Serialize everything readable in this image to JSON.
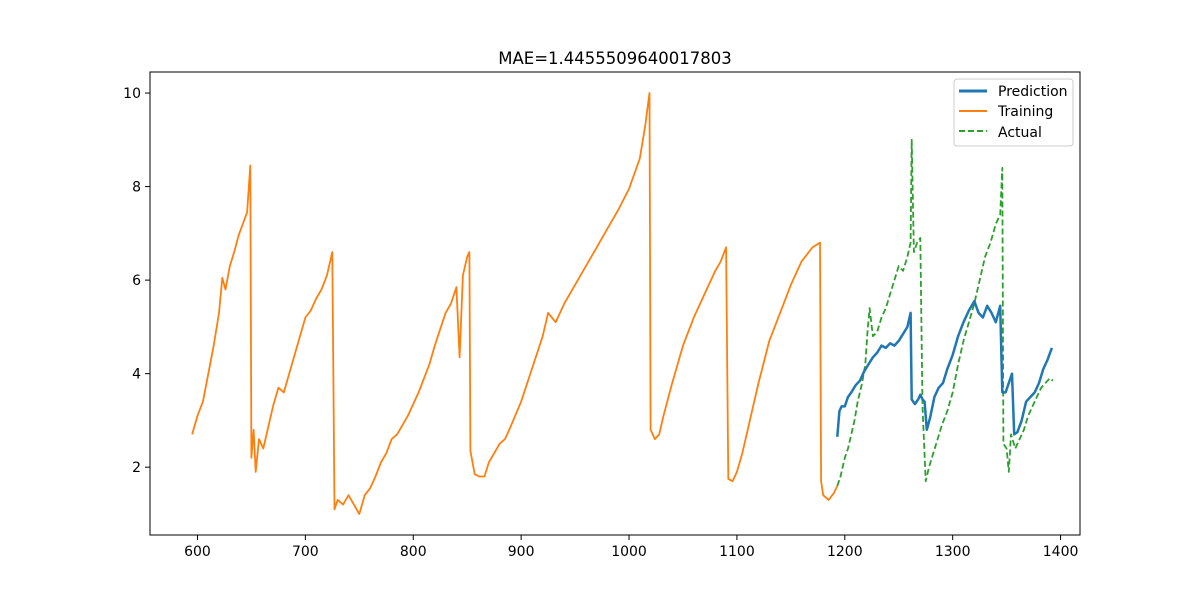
{
  "chart_data": {
    "type": "line",
    "title": "MAE=1.4455509640017803",
    "xlabel": "",
    "ylabel": "",
    "xlim": [
      556,
      1418
    ],
    "ylim": [
      0.55,
      10.45
    ],
    "x_ticks": [
      600,
      700,
      800,
      900,
      1000,
      1100,
      1200,
      1300,
      1400
    ],
    "x_tick_labels": [
      "600",
      "700",
      "800",
      "900",
      "1000",
      "1100",
      "1200",
      "1300",
      "1400"
    ],
    "y_ticks": [
      2,
      4,
      6,
      8,
      10
    ],
    "y_tick_labels": [
      "2",
      "4",
      "6",
      "8",
      "10"
    ],
    "grid": false,
    "legend_position": "top-right",
    "series": [
      {
        "name": "Prediction",
        "color": "#1f77b4",
        "style": "solid",
        "points": [
          [
            1193,
            2.65
          ],
          [
            1195,
            3.2
          ],
          [
            1197,
            3.3
          ],
          [
            1200,
            3.3
          ],
          [
            1203,
            3.5
          ],
          [
            1206,
            3.6
          ],
          [
            1210,
            3.75
          ],
          [
            1214,
            3.85
          ],
          [
            1218,
            4.05
          ],
          [
            1222,
            4.2
          ],
          [
            1226,
            4.35
          ],
          [
            1230,
            4.45
          ],
          [
            1234,
            4.6
          ],
          [
            1238,
            4.55
          ],
          [
            1242,
            4.65
          ],
          [
            1246,
            4.6
          ],
          [
            1250,
            4.7
          ],
          [
            1254,
            4.85
          ],
          [
            1258,
            5.0
          ],
          [
            1261,
            5.3
          ],
          [
            1262,
            3.45
          ],
          [
            1265,
            3.35
          ],
          [
            1268,
            3.45
          ],
          [
            1270,
            3.55
          ],
          [
            1272,
            3.45
          ],
          [
            1274,
            3.4
          ],
          [
            1276,
            2.8
          ],
          [
            1279,
            3.05
          ],
          [
            1283,
            3.5
          ],
          [
            1287,
            3.7
          ],
          [
            1291,
            3.8
          ],
          [
            1295,
            4.1
          ],
          [
            1300,
            4.4
          ],
          [
            1305,
            4.8
          ],
          [
            1310,
            5.1
          ],
          [
            1315,
            5.35
          ],
          [
            1320,
            5.55
          ],
          [
            1324,
            5.3
          ],
          [
            1328,
            5.2
          ],
          [
            1332,
            5.45
          ],
          [
            1336,
            5.3
          ],
          [
            1340,
            5.1
          ],
          [
            1344,
            5.45
          ],
          [
            1346,
            3.6
          ],
          [
            1349,
            3.6
          ],
          [
            1352,
            3.8
          ],
          [
            1355,
            4.0
          ],
          [
            1357,
            2.7
          ],
          [
            1360,
            2.75
          ],
          [
            1364,
            3.0
          ],
          [
            1368,
            3.4
          ],
          [
            1372,
            3.5
          ],
          [
            1376,
            3.6
          ],
          [
            1380,
            3.8
          ],
          [
            1384,
            4.1
          ],
          [
            1388,
            4.3
          ],
          [
            1392,
            4.55
          ]
        ]
      },
      {
        "name": "Training",
        "color": "#ff7f0e",
        "style": "solid",
        "points": [
          [
            595,
            2.7
          ],
          [
            600,
            3.1
          ],
          [
            605,
            3.4
          ],
          [
            610,
            4.0
          ],
          [
            615,
            4.6
          ],
          [
            620,
            5.3
          ],
          [
            623,
            6.05
          ],
          [
            626,
            5.8
          ],
          [
            630,
            6.3
          ],
          [
            634,
            6.6
          ],
          [
            638,
            6.95
          ],
          [
            642,
            7.2
          ],
          [
            646,
            7.45
          ],
          [
            649,
            8.45
          ],
          [
            650,
            2.2
          ],
          [
            652,
            2.8
          ],
          [
            654,
            1.9
          ],
          [
            657,
            2.6
          ],
          [
            661,
            2.4
          ],
          [
            665,
            2.8
          ],
          [
            670,
            3.3
          ],
          [
            675,
            3.7
          ],
          [
            680,
            3.6
          ],
          [
            685,
            4.0
          ],
          [
            690,
            4.4
          ],
          [
            695,
            4.8
          ],
          [
            700,
            5.2
          ],
          [
            705,
            5.35
          ],
          [
            710,
            5.6
          ],
          [
            715,
            5.8
          ],
          [
            720,
            6.1
          ],
          [
            725,
            6.6
          ],
          [
            727,
            1.1
          ],
          [
            730,
            1.3
          ],
          [
            735,
            1.2
          ],
          [
            740,
            1.4
          ],
          [
            745,
            1.2
          ],
          [
            750,
            1.0
          ],
          [
            755,
            1.4
          ],
          [
            760,
            1.55
          ],
          [
            765,
            1.8
          ],
          [
            770,
            2.1
          ],
          [
            775,
            2.3
          ],
          [
            780,
            2.6
          ],
          [
            785,
            2.7
          ],
          [
            790,
            2.9
          ],
          [
            795,
            3.1
          ],
          [
            800,
            3.35
          ],
          [
            805,
            3.6
          ],
          [
            810,
            3.9
          ],
          [
            815,
            4.2
          ],
          [
            820,
            4.6
          ],
          [
            825,
            4.95
          ],
          [
            830,
            5.3
          ],
          [
            835,
            5.5
          ],
          [
            840,
            5.85
          ],
          [
            843,
            4.35
          ],
          [
            846,
            6.1
          ],
          [
            850,
            6.5
          ],
          [
            852,
            6.6
          ],
          [
            853,
            2.35
          ],
          [
            857,
            1.85
          ],
          [
            861,
            1.8
          ],
          [
            866,
            1.8
          ],
          [
            870,
            2.1
          ],
          [
            875,
            2.3
          ],
          [
            880,
            2.5
          ],
          [
            885,
            2.6
          ],
          [
            890,
            2.85
          ],
          [
            900,
            3.4
          ],
          [
            910,
            4.1
          ],
          [
            920,
            4.8
          ],
          [
            925,
            5.3
          ],
          [
            932,
            5.1
          ],
          [
            940,
            5.5
          ],
          [
            950,
            5.9
          ],
          [
            960,
            6.3
          ],
          [
            970,
            6.7
          ],
          [
            980,
            7.1
          ],
          [
            990,
            7.5
          ],
          [
            1000,
            7.95
          ],
          [
            1010,
            8.6
          ],
          [
            1015,
            9.3
          ],
          [
            1019,
            10.0
          ],
          [
            1020,
            2.8
          ],
          [
            1024,
            2.6
          ],
          [
            1028,
            2.7
          ],
          [
            1032,
            3.1
          ],
          [
            1040,
            3.8
          ],
          [
            1050,
            4.6
          ],
          [
            1060,
            5.2
          ],
          [
            1070,
            5.7
          ],
          [
            1080,
            6.2
          ],
          [
            1085,
            6.4
          ],
          [
            1090,
            6.7
          ],
          [
            1092,
            1.75
          ],
          [
            1096,
            1.7
          ],
          [
            1100,
            1.9
          ],
          [
            1105,
            2.3
          ],
          [
            1110,
            2.8
          ],
          [
            1115,
            3.3
          ],
          [
            1120,
            3.8
          ],
          [
            1130,
            4.7
          ],
          [
            1140,
            5.3
          ],
          [
            1150,
            5.9
          ],
          [
            1160,
            6.4
          ],
          [
            1170,
            6.7
          ],
          [
            1177,
            6.8
          ],
          [
            1178,
            1.7
          ],
          [
            1180,
            1.4
          ],
          [
            1185,
            1.3
          ],
          [
            1190,
            1.45
          ],
          [
            1193,
            1.6
          ]
        ]
      },
      {
        "name": "Actual",
        "color": "#2ca02c",
        "style": "dashed",
        "points": [
          [
            1193,
            1.6
          ],
          [
            1196,
            1.8
          ],
          [
            1200,
            2.2
          ],
          [
            1203,
            2.4
          ],
          [
            1206,
            2.7
          ],
          [
            1209,
            3.0
          ],
          [
            1212,
            3.4
          ],
          [
            1216,
            3.8
          ],
          [
            1219,
            4.2
          ],
          [
            1221,
            4.9
          ],
          [
            1223,
            5.4
          ],
          [
            1226,
            4.8
          ],
          [
            1230,
            4.9
          ],
          [
            1234,
            5.2
          ],
          [
            1238,
            5.4
          ],
          [
            1242,
            5.7
          ],
          [
            1246,
            6.0
          ],
          [
            1250,
            6.3
          ],
          [
            1254,
            6.2
          ],
          [
            1258,
            6.5
          ],
          [
            1261,
            6.8
          ],
          [
            1262,
            9.0
          ],
          [
            1264,
            6.6
          ],
          [
            1267,
            6.8
          ],
          [
            1270,
            6.9
          ],
          [
            1272,
            3.3
          ],
          [
            1275,
            1.7
          ],
          [
            1278,
            2.0
          ],
          [
            1282,
            2.3
          ],
          [
            1286,
            2.6
          ],
          [
            1290,
            2.9
          ],
          [
            1295,
            3.2
          ],
          [
            1300,
            3.6
          ],
          [
            1305,
            4.2
          ],
          [
            1310,
            4.7
          ],
          [
            1315,
            5.1
          ],
          [
            1320,
            5.5
          ],
          [
            1325,
            6.0
          ],
          [
            1330,
            6.5
          ],
          [
            1335,
            6.8
          ],
          [
            1340,
            7.2
          ],
          [
            1344,
            7.4
          ],
          [
            1346,
            8.4
          ],
          [
            1347,
            2.5
          ],
          [
            1350,
            2.4
          ],
          [
            1352,
            1.9
          ],
          [
            1354,
            2.7
          ],
          [
            1358,
            2.4
          ],
          [
            1362,
            2.6
          ],
          [
            1366,
            2.8
          ],
          [
            1370,
            3.1
          ],
          [
            1374,
            3.3
          ],
          [
            1378,
            3.5
          ],
          [
            1382,
            3.7
          ],
          [
            1386,
            3.8
          ],
          [
            1390,
            3.9
          ],
          [
            1393,
            3.85
          ]
        ]
      }
    ]
  }
}
